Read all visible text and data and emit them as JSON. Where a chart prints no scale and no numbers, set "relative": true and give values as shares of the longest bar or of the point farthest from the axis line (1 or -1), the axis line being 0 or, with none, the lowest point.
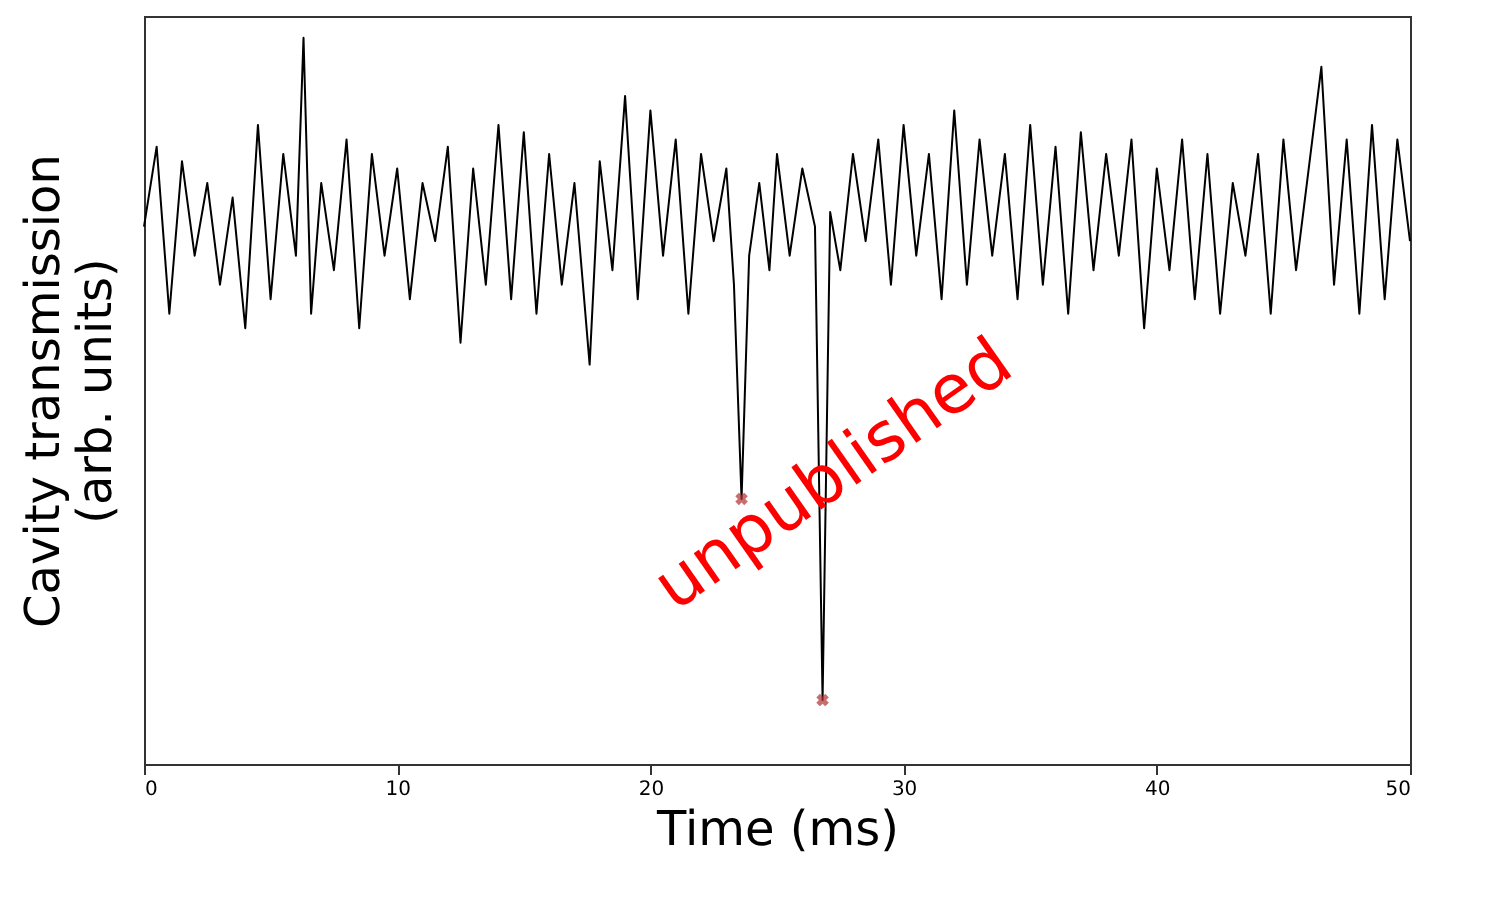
{
  "chart_data": {
    "type": "line",
    "relative": true,
    "xlabel": "Time (ms)",
    "ylabel": "Cavity transmission\n(arb. units)",
    "xlim": [
      0,
      50
    ],
    "xticks": [
      0,
      10,
      20,
      30,
      40,
      50
    ],
    "grid": false,
    "tick_labels": "x",
    "annotations": [
      "unpublished"
    ],
    "series": [
      {
        "color": "#000000",
        "line_style": "solid",
        "x": [
          0,
          0.5,
          1,
          1.5,
          2,
          2.5,
          3,
          3.5,
          4,
          4.5,
          5,
          5.5,
          6,
          6.3,
          6.6,
          7,
          7.5,
          8,
          8.5,
          9,
          9.5,
          10,
          10.5,
          11,
          11.5,
          12,
          12.5,
          13,
          13.5,
          14,
          14.5,
          15,
          15.5,
          16,
          16.5,
          17,
          17.6,
          18,
          18.5,
          19,
          19.5,
          20,
          20.5,
          21,
          21.5,
          22,
          22.5,
          23,
          23.3,
          23.6,
          23.9,
          24.3,
          24.7,
          25,
          25.5,
          26,
          26.5,
          26.8,
          27.1,
          27.5,
          28,
          28.5,
          29,
          29.5,
          30,
          30.5,
          31,
          31.5,
          32,
          32.5,
          33,
          33.5,
          34,
          34.5,
          35,
          35.5,
          36,
          36.5,
          37,
          37.5,
          38,
          38.5,
          39,
          39.5,
          40,
          40.5,
          41,
          41.5,
          42,
          42.5,
          43,
          43.5,
          44,
          44.5,
          45,
          45.5,
          46,
          46.5,
          47,
          47.5,
          48,
          48.5,
          49,
          49.5,
          50
        ],
        "values": [
          0.74,
          0.85,
          0.62,
          0.83,
          0.7,
          0.8,
          0.66,
          0.78,
          0.6,
          0.88,
          0.64,
          0.84,
          0.7,
          1.0,
          0.62,
          0.8,
          0.68,
          0.86,
          0.6,
          0.84,
          0.7,
          0.82,
          0.64,
          0.8,
          0.72,
          0.85,
          0.58,
          0.82,
          0.66,
          0.88,
          0.64,
          0.87,
          0.62,
          0.84,
          0.66,
          0.8,
          0.55,
          0.83,
          0.68,
          0.92,
          0.64,
          0.9,
          0.7,
          0.86,
          0.62,
          0.84,
          0.72,
          0.82,
          0.66,
          0.365,
          0.7,
          0.8,
          0.68,
          0.84,
          0.7,
          0.82,
          0.74,
          0.088,
          0.76,
          0.68,
          0.84,
          0.72,
          0.86,
          0.66,
          0.88,
          0.7,
          0.84,
          0.64,
          0.9,
          0.66,
          0.86,
          0.7,
          0.84,
          0.64,
          0.88,
          0.66,
          0.85,
          0.62,
          0.87,
          0.68,
          0.84,
          0.7,
          0.86,
          0.6,
          0.82,
          0.68,
          0.86,
          0.64,
          0.84,
          0.62,
          0.8,
          0.7,
          0.84,
          0.62,
          0.86,
          0.68,
          0.82,
          0.96,
          0.66,
          0.86,
          0.62,
          0.88,
          0.64,
          0.86,
          0.72
        ]
      },
      {
        "type": "scatter",
        "color": "#b03030",
        "marker": "cross",
        "x": [
          23.6,
          26.8
        ],
        "values": [
          0.365,
          0.088
        ]
      }
    ]
  }
}
